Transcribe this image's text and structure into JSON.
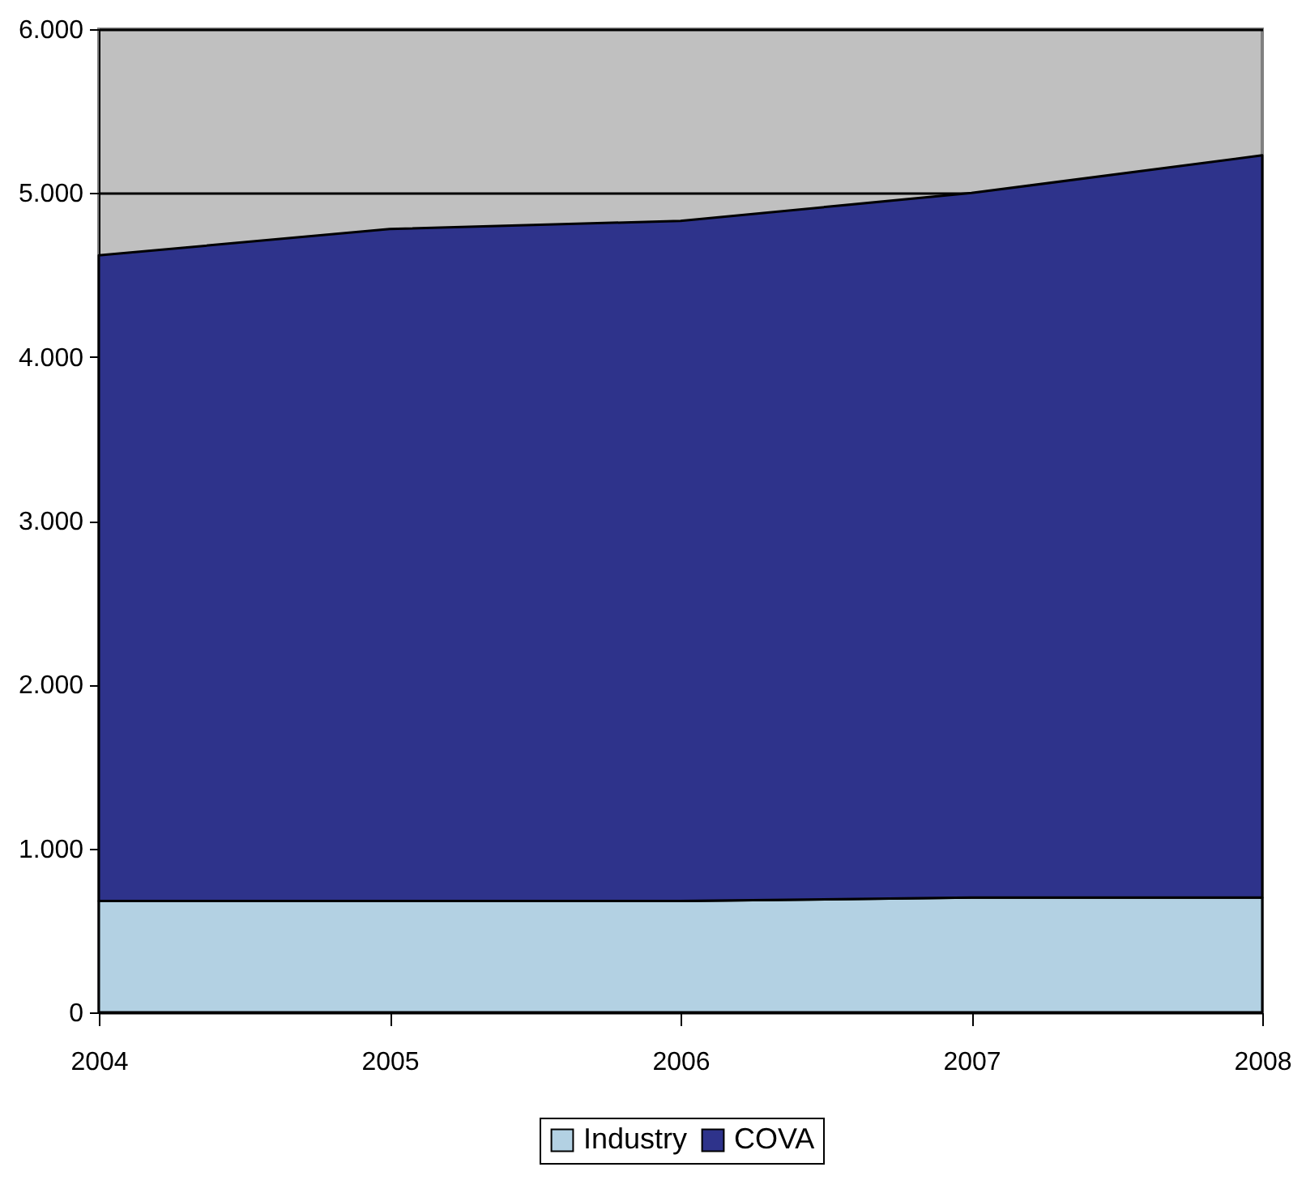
{
  "chart_data": {
    "type": "area",
    "stacked": true,
    "x": [
      2004,
      2005,
      2006,
      2007,
      2008
    ],
    "series": [
      {
        "name": "Industry",
        "color": "#b3d1e3",
        "values": [
          680,
          680,
          680,
          700,
          700
        ]
      },
      {
        "name": "COVA",
        "color": "#2e338b",
        "values": [
          3940,
          4100,
          4150,
          4300,
          4530
        ]
      }
    ],
    "xlim": [
      2004,
      2008
    ],
    "xticks": [
      2004,
      2005,
      2006,
      2007,
      2008
    ],
    "ylim": [
      0,
      6000
    ],
    "yticks": [
      {
        "value": 0,
        "label": "0"
      },
      {
        "value": 1000,
        "label": "1.000"
      },
      {
        "value": 2000,
        "label": "2.000"
      },
      {
        "value": 3000,
        "label": "3.000"
      },
      {
        "value": 4000,
        "label": "4.000"
      },
      {
        "value": 5000,
        "label": "5.000"
      },
      {
        "value": 6000,
        "label": "6.000"
      }
    ],
    "grid": "y",
    "legend": "bottom"
  }
}
